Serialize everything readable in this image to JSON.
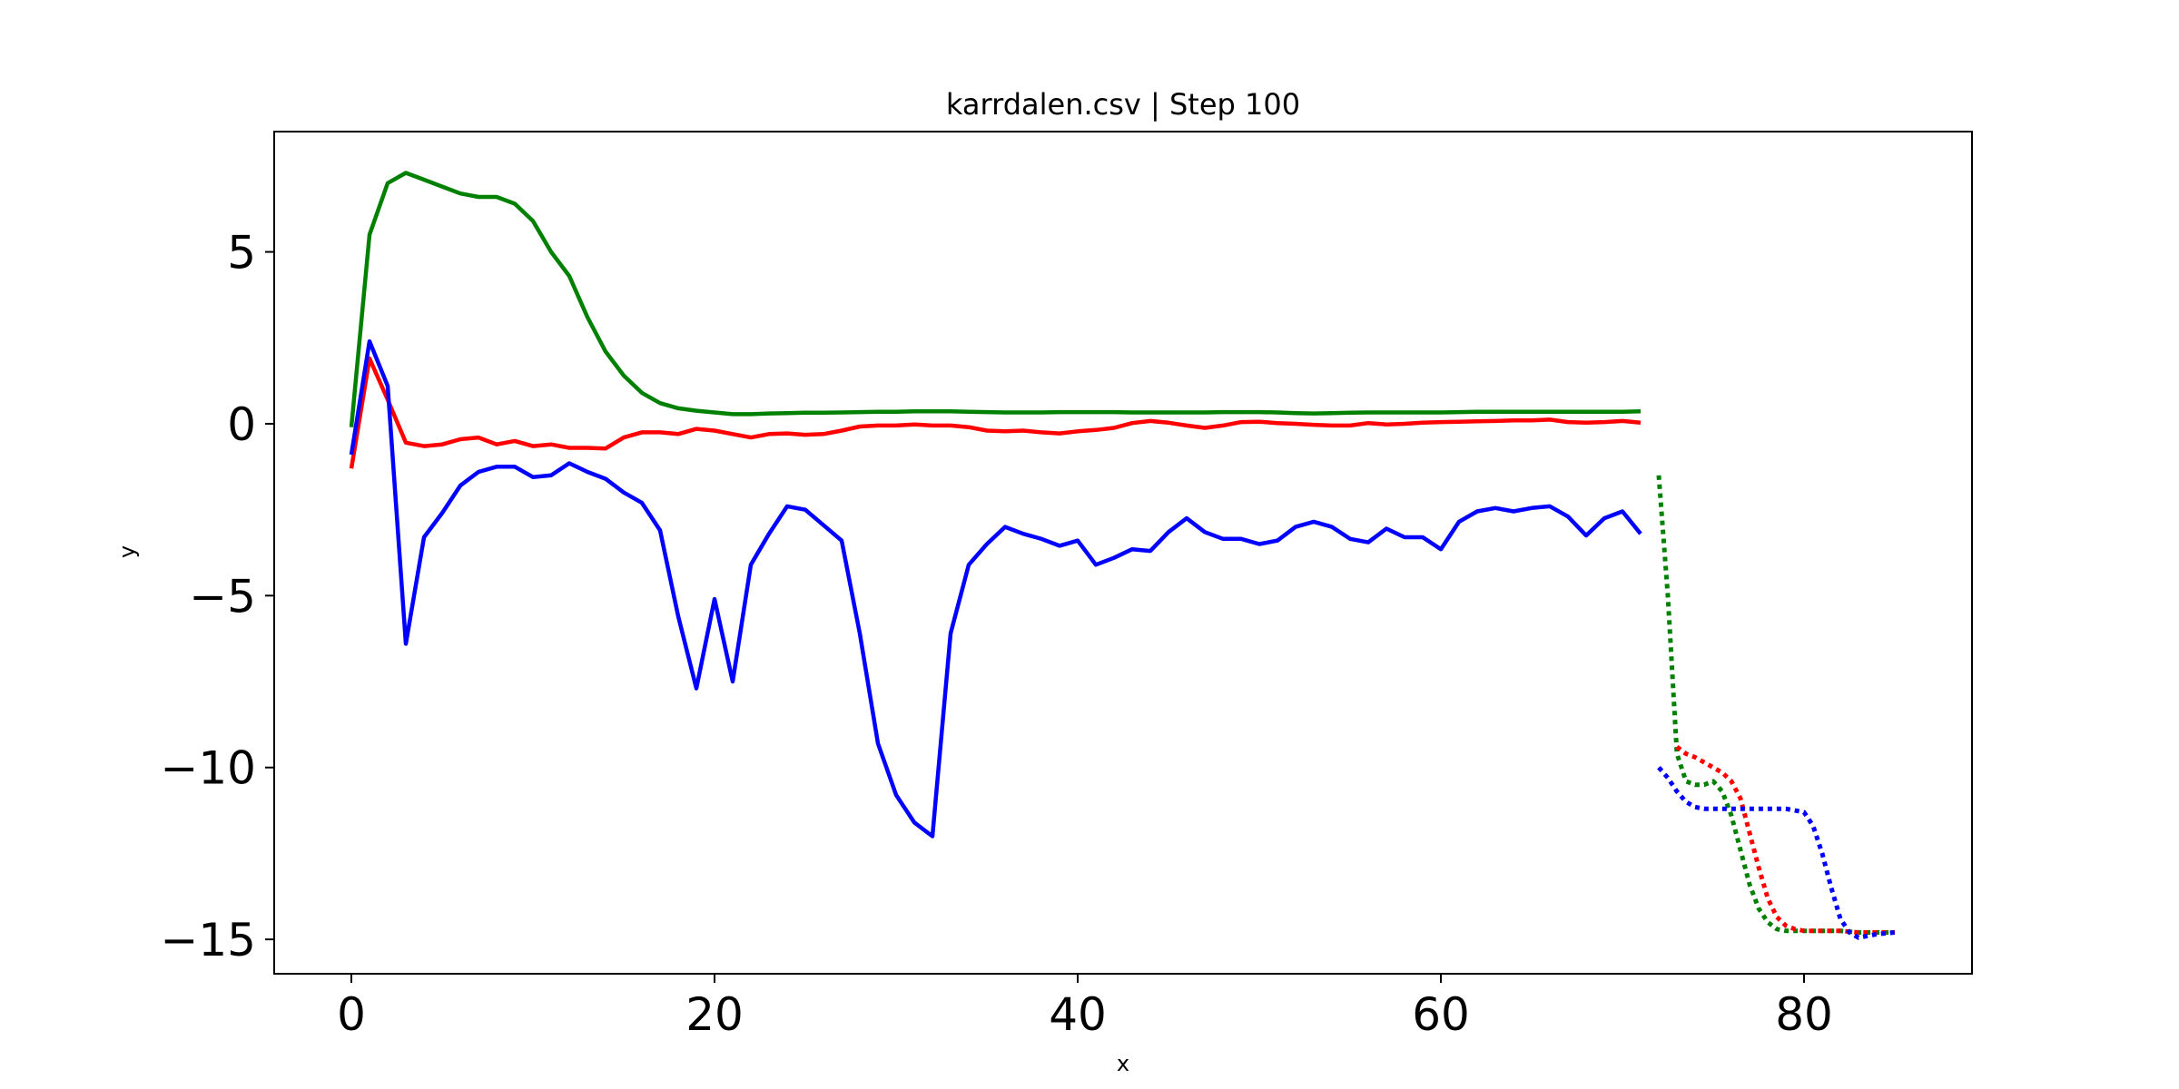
{
  "chart_data": {
    "type": "line",
    "title": "karrdalen.csv | Step 100",
    "xlabel": "x",
    "ylabel": "y",
    "xlim": [
      -4.25,
      89.25
    ],
    "ylim": [
      -16.0,
      8.5
    ],
    "xticks": [
      0,
      20,
      40,
      60,
      80
    ],
    "xtick_labels": [
      "0",
      "20",
      "40",
      "60",
      "80"
    ],
    "yticks": [
      5,
      0,
      -5,
      -10,
      -15
    ],
    "ytick_labels": [
      "5",
      "0",
      "−5",
      "−10",
      "−15"
    ],
    "grid": false,
    "series": [
      {
        "color": "#008000",
        "style": "solid",
        "x": [
          0,
          1,
          2,
          3,
          4,
          5,
          6,
          7,
          8,
          9,
          10,
          11,
          12,
          13,
          14,
          15,
          16,
          17,
          18,
          19,
          20,
          21,
          22,
          23,
          24,
          25,
          26,
          27,
          28,
          29,
          30,
          31,
          32,
          33,
          34,
          35,
          36,
          37,
          38,
          39,
          40,
          41,
          42,
          43,
          44,
          45,
          46,
          47,
          48,
          49,
          50,
          51,
          52,
          53,
          54,
          55,
          56,
          57,
          58,
          59,
          60,
          61,
          62,
          63,
          64,
          65,
          66,
          67,
          68,
          69,
          70,
          71
        ],
        "y": [
          -0.1,
          5.5,
          7.0,
          7.3,
          7.1,
          6.9,
          6.7,
          6.6,
          6.6,
          6.4,
          5.9,
          5.0,
          4.3,
          3.1,
          2.1,
          1.4,
          0.9,
          0.6,
          0.45,
          0.38,
          0.33,
          0.28,
          0.28,
          0.3,
          0.31,
          0.32,
          0.32,
          0.33,
          0.34,
          0.35,
          0.35,
          0.36,
          0.36,
          0.36,
          0.35,
          0.34,
          0.33,
          0.33,
          0.33,
          0.34,
          0.34,
          0.34,
          0.34,
          0.33,
          0.33,
          0.33,
          0.33,
          0.33,
          0.34,
          0.34,
          0.34,
          0.33,
          0.31,
          0.3,
          0.31,
          0.32,
          0.33,
          0.33,
          0.33,
          0.33,
          0.33,
          0.34,
          0.35,
          0.35,
          0.35,
          0.35,
          0.35,
          0.35,
          0.35,
          0.35,
          0.35,
          0.36
        ]
      },
      {
        "color": "#ff0000",
        "style": "solid",
        "x": [
          0,
          1,
          2,
          3,
          4,
          5,
          6,
          7,
          8,
          9,
          10,
          11,
          12,
          13,
          14,
          15,
          16,
          17,
          18,
          19,
          20,
          21,
          22,
          23,
          24,
          25,
          26,
          27,
          28,
          29,
          30,
          31,
          32,
          33,
          34,
          35,
          36,
          37,
          38,
          39,
          40,
          41,
          42,
          43,
          44,
          45,
          46,
          47,
          48,
          49,
          50,
          51,
          52,
          53,
          54,
          55,
          56,
          57,
          58,
          59,
          60,
          61,
          62,
          63,
          64,
          65,
          66,
          67,
          68,
          69,
          70,
          71
        ],
        "y": [
          -1.3,
          1.9,
          0.7,
          -0.55,
          -0.65,
          -0.6,
          -0.45,
          -0.4,
          -0.6,
          -0.5,
          -0.65,
          -0.6,
          -0.7,
          -0.7,
          -0.72,
          -0.4,
          -0.25,
          -0.25,
          -0.3,
          -0.15,
          -0.2,
          -0.3,
          -0.4,
          -0.3,
          -0.28,
          -0.32,
          -0.3,
          -0.2,
          -0.08,
          -0.05,
          -0.05,
          -0.02,
          -0.05,
          -0.05,
          -0.1,
          -0.2,
          -0.22,
          -0.2,
          -0.25,
          -0.28,
          -0.22,
          -0.18,
          -0.12,
          0.02,
          0.08,
          0.03,
          -0.05,
          -0.12,
          -0.05,
          0.05,
          0.06,
          0.02,
          0.0,
          -0.03,
          -0.05,
          -0.05,
          0.02,
          -0.02,
          0.0,
          0.03,
          0.05,
          0.06,
          0.07,
          0.08,
          0.1,
          0.1,
          0.12,
          0.05,
          0.03,
          0.05,
          0.08,
          0.03
        ]
      },
      {
        "color": "#0000ff",
        "style": "solid",
        "x": [
          0,
          1,
          2,
          3,
          4,
          5,
          6,
          7,
          8,
          9,
          10,
          11,
          12,
          13,
          14,
          15,
          16,
          17,
          18,
          19,
          20,
          21,
          22,
          23,
          24,
          25,
          26,
          27,
          28,
          29,
          30,
          31,
          32,
          33,
          34,
          35,
          36,
          37,
          38,
          39,
          40,
          41,
          42,
          43,
          44,
          45,
          46,
          47,
          48,
          49,
          50,
          51,
          52,
          53,
          54,
          55,
          56,
          57,
          58,
          59,
          60,
          61,
          62,
          63,
          64,
          65,
          66,
          67,
          68,
          69,
          70,
          71
        ],
        "y": [
          -0.9,
          2.4,
          1.1,
          -6.4,
          -3.3,
          -2.6,
          -1.8,
          -1.4,
          -1.25,
          -1.25,
          -1.55,
          -1.5,
          -1.15,
          -1.4,
          -1.6,
          -2.0,
          -2.3,
          -3.1,
          -5.6,
          -7.7,
          -5.1,
          -7.5,
          -4.1,
          -3.2,
          -2.4,
          -2.5,
          -2.95,
          -3.4,
          -6.1,
          -9.3,
          -10.8,
          -11.6,
          -12.0,
          -6.1,
          -4.1,
          -3.5,
          -3.0,
          -3.2,
          -3.35,
          -3.55,
          -3.4,
          -4.1,
          -3.9,
          -3.65,
          -3.7,
          -3.15,
          -2.75,
          -3.15,
          -3.35,
          -3.35,
          -3.5,
          -3.4,
          -3.0,
          -2.85,
          -3.0,
          -3.35,
          -3.45,
          -3.05,
          -3.3,
          -3.3,
          -3.65,
          -2.85,
          -2.55,
          -2.45,
          -2.55,
          -2.45,
          -2.4,
          -2.7,
          -3.25,
          -2.75,
          -2.55,
          -3.2
        ]
      },
      {
        "color": "#008000",
        "style": "dotted",
        "x": [
          72,
          72.5,
          73,
          73.5,
          74,
          74.5,
          75,
          75.5,
          76,
          76.5,
          77,
          77.5,
          78,
          78.5,
          79,
          79.5,
          80,
          81,
          82,
          83,
          84,
          85
        ],
        "y": [
          -1.5,
          -5.0,
          -9.6,
          -10.4,
          -10.5,
          -10.5,
          -10.4,
          -10.7,
          -11.4,
          -12.4,
          -13.4,
          -14.1,
          -14.5,
          -14.7,
          -14.75,
          -14.75,
          -14.75,
          -14.75,
          -14.75,
          -14.8,
          -14.8,
          -14.8
        ]
      },
      {
        "color": "#ff0000",
        "style": "dotted",
        "x": [
          73,
          73.5,
          74,
          74.5,
          75,
          75.5,
          76,
          76.5,
          77,
          77.5,
          78,
          78.5,
          79,
          79.5,
          80,
          81,
          82,
          83,
          84,
          85
        ],
        "y": [
          -9.4,
          -9.6,
          -9.7,
          -9.85,
          -10.0,
          -10.15,
          -10.4,
          -10.9,
          -11.9,
          -12.9,
          -13.8,
          -14.35,
          -14.6,
          -14.7,
          -14.75,
          -14.75,
          -14.75,
          -14.8,
          -14.8,
          -14.8
        ]
      },
      {
        "color": "#0000ff",
        "style": "dotted",
        "x": [
          72,
          72.5,
          73,
          73.5,
          74,
          74.5,
          75,
          76,
          77,
          78,
          79,
          79.5,
          80,
          80.5,
          81,
          81.5,
          82,
          82.5,
          83,
          83.5,
          84,
          85
        ],
        "y": [
          -10.0,
          -10.3,
          -10.7,
          -11.0,
          -11.15,
          -11.2,
          -11.2,
          -11.2,
          -11.2,
          -11.2,
          -11.2,
          -11.25,
          -11.3,
          -11.7,
          -12.5,
          -13.5,
          -14.4,
          -14.8,
          -14.95,
          -14.9,
          -14.85,
          -14.8
        ]
      }
    ]
  }
}
